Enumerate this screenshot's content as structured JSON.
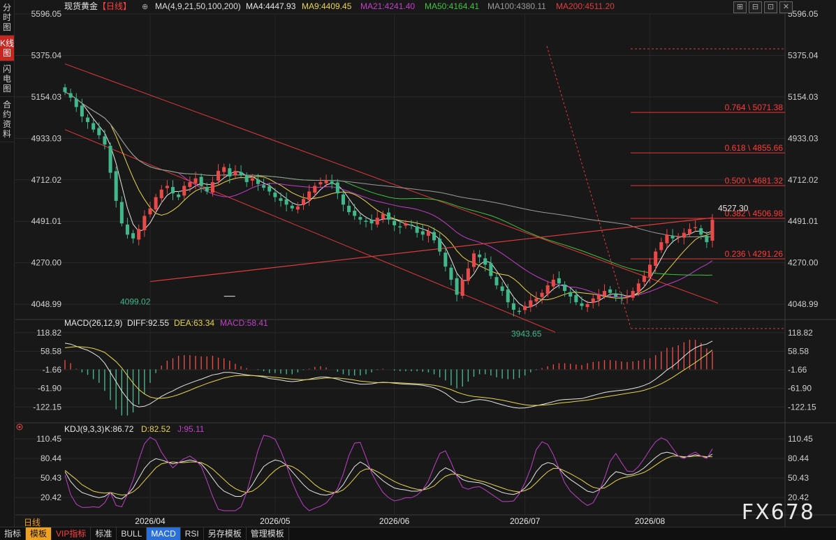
{
  "sidebar": {
    "tabs": [
      "分时图",
      "K线图",
      "闪电图",
      "合约资料"
    ],
    "active": 1
  },
  "header": {
    "name": "现货黄金",
    "period": "【日线】",
    "ma_params": "MA(4,9,21,50,100,200)",
    "ma_items": [
      {
        "label": "MA4:4447.93",
        "color": "#e6e6e6"
      },
      {
        "label": "MA9:4409.45",
        "color": "#e8d44d"
      },
      {
        "label": "MA21:4241.40",
        "color": "#c040c8"
      },
      {
        "label": "MA50:4164.41",
        "color": "#3ec43e"
      },
      {
        "label": "MA100:4380.11",
        "color": "#9a9a9a"
      },
      {
        "label": "MA200:4511.20",
        "color": "#e03c3c"
      }
    ]
  },
  "window_icons": [
    "⊞",
    "⊟",
    "⊡",
    "✕"
  ],
  "macd_header": {
    "label": "MACD(26,12,9)",
    "diff": "DIFF:92.55",
    "dea": "DEA:63.34",
    "macd": "MACD:58.41"
  },
  "kdj_header": {
    "label": "KDJ(9,3,3)",
    "k": "K:86.72",
    "d": "D:82.52",
    "j": "J:95.11"
  },
  "bottom_tabs": [
    "指标",
    "模板",
    "VIP指标",
    "标准",
    "BULL",
    "MACD",
    "RSI",
    "另存模板",
    "管理模板"
  ],
  "period_label": "日线",
  "watermark": "FX678",
  "colors": {
    "up": "#e84a4a",
    "down": "#3fb88a",
    "background": "#181818",
    "grid": "#2c2c2c"
  },
  "chart_data": {
    "type": "candlestick",
    "x_ticks": [
      "2026/04",
      "2026/05",
      "2026/06",
      "2026/07",
      "2026/08"
    ],
    "y_ticks": [
      "5596.05",
      "5375.04",
      "5154.03",
      "4933.03",
      "4712.02",
      "4491.01",
      "4270.00",
      "4048.99"
    ],
    "ylim": [
      3990,
      5596.05
    ],
    "annotations": {
      "high": "4527.30",
      "low_a": "4099.02",
      "low_b": "3943.65"
    },
    "fib_levels": [
      {
        "label": "0.764 \\ 5071.38",
        "value": 5071.38
      },
      {
        "label": "0.618 \\ 4855.66",
        "value": 4855.66
      },
      {
        "label": "0.500 \\ 4681.32",
        "value": 4681.32
      },
      {
        "label": "0.382 \\ 4506.98",
        "value": 4506.98
      },
      {
        "label": "0.236 \\ 4291.26",
        "value": 4291.26
      }
    ],
    "fib_top": 5410,
    "fib_bottom": 3920,
    "closes": [
      5180,
      5150,
      5100,
      5050,
      5020,
      4980,
      4950,
      4900,
      4750,
      4600,
      4480,
      4420,
      4400,
      4450,
      4520,
      4560,
      4620,
      4660,
      4680,
      4640,
      4620,
      4680,
      4700,
      4720,
      4680,
      4650,
      4700,
      4760,
      4780,
      4730,
      4760,
      4740,
      4700,
      4720,
      4690,
      4670,
      4650,
      4620,
      4600,
      4580,
      4560,
      4570,
      4610,
      4650,
      4680,
      4700,
      4710,
      4690,
      4640,
      4580,
      4540,
      4520,
      4500,
      4490,
      4480,
      4510,
      4530,
      4500,
      4470,
      4460,
      4480,
      4470,
      4430,
      4420,
      4440,
      4390,
      4330,
      4250,
      4180,
      4100,
      4180,
      4240,
      4320,
      4300,
      4260,
      4200,
      4150,
      4120,
      4060,
      4020,
      4010,
      4040,
      4070,
      4080,
      4110,
      4150,
      4180,
      4160,
      4120,
      4090,
      4060,
      4040,
      4050,
      4080,
      4100,
      4120,
      4110,
      4090,
      4080,
      4090,
      4120,
      4160,
      4200,
      4260,
      4330,
      4380,
      4420,
      4400,
      4410,
      4430,
      4450,
      4460,
      4420,
      4380,
      4500
    ],
    "macd": {
      "ylim": [
        -160,
        130
      ],
      "y_ticks": [
        "118.82",
        "58.58",
        "-1.66",
        "-61.90",
        "-122.15"
      ],
      "diff": [
        85,
        82,
        75,
        68,
        62,
        52,
        40,
        20,
        -10,
        -40,
        -70,
        -95,
        -115,
        -122,
        -120,
        -112,
        -100,
        -88,
        -78,
        -70,
        -60,
        -52,
        -45,
        -38,
        -32,
        -25,
        -18,
        -15,
        -10,
        -10,
        -12,
        -15,
        -18,
        -20,
        -22,
        -25,
        -30,
        -32,
        -35,
        -38,
        -40,
        -38,
        -35,
        -32,
        -28,
        -25,
        -25,
        -28,
        -32,
        -38,
        -42,
        -45,
        -48,
        -48,
        -47,
        -44,
        -42,
        -43,
        -45,
        -47,
        -48,
        -49,
        -50,
        -52,
        -55,
        -60,
        -68,
        -78,
        -92,
        -105,
        -108,
        -105,
        -100,
        -98,
        -100,
        -104,
        -110,
        -115,
        -120,
        -124,
        -126,
        -125,
        -122,
        -118,
        -114,
        -110,
        -105,
        -100,
        -98,
        -97,
        -96,
        -95,
        -90,
        -85,
        -80,
        -75,
        -72,
        -70,
        -68,
        -66,
        -62,
        -58,
        -52,
        -44,
        -32,
        -18,
        -2,
        10,
        25,
        42,
        58,
        70,
        78,
        82,
        92
      ],
      "dea": [
        70,
        72,
        74,
        73,
        71,
        68,
        62,
        55,
        40,
        25,
        5,
        -20,
        -45,
        -65,
        -80,
        -90,
        -94,
        -94,
        -92,
        -88,
        -82,
        -75,
        -68,
        -60,
        -53,
        -46,
        -40,
        -34,
        -28,
        -24,
        -21,
        -20,
        -20,
        -20,
        -21,
        -22,
        -24,
        -26,
        -28,
        -30,
        -32,
        -33,
        -34,
        -33,
        -32,
        -30,
        -28,
        -28,
        -28,
        -30,
        -32,
        -35,
        -38,
        -40,
        -42,
        -43,
        -43,
        -43,
        -43,
        -44,
        -45,
        -46,
        -47,
        -48,
        -50,
        -52,
        -55,
        -60,
        -66,
        -74,
        -80,
        -85,
        -88,
        -90,
        -92,
        -94,
        -97,
        -100,
        -104,
        -108,
        -112,
        -115,
        -117,
        -117,
        -116,
        -115,
        -113,
        -110,
        -108,
        -106,
        -104,
        -102,
        -100,
        -97,
        -93,
        -90,
        -87,
        -84,
        -81,
        -78,
        -75,
        -72,
        -68,
        -62,
        -55,
        -47,
        -37,
        -26,
        -14,
        -2,
        10,
        22,
        35,
        48,
        63
      ]
    },
    "kdj": {
      "ylim": [
        0,
        118
      ],
      "y_ticks": [
        "110.45",
        "80.44",
        "50.43",
        "20.42"
      ],
      "k": [
        60,
        45,
        35,
        28,
        25,
        22,
        20,
        22,
        28,
        20,
        18,
        25,
        35,
        50,
        65,
        75,
        80,
        78,
        75,
        72,
        74,
        76,
        78,
        76,
        72,
        62,
        50,
        38,
        30,
        26,
        22,
        22,
        28,
        40,
        55,
        68,
        74,
        78,
        76,
        70,
        60,
        50,
        40,
        32,
        28,
        25,
        24,
        26,
        30,
        40,
        55,
        68,
        75,
        70,
        62,
        54,
        46,
        40,
        35,
        33,
        32,
        30,
        30,
        32,
        38,
        48,
        60,
        66,
        62,
        55,
        48,
        45,
        44,
        43,
        40,
        36,
        32,
        28,
        26,
        25,
        28,
        35,
        45,
        60,
        70,
        74,
        72,
        65,
        55,
        48,
        42,
        36,
        30,
        28,
        32,
        40,
        52,
        60,
        58,
        55,
        56,
        60,
        66,
        74,
        82,
        88,
        90,
        88,
        84,
        82,
        84,
        86,
        84,
        82,
        87
      ],
      "d": [
        62,
        55,
        48,
        40,
        35,
        30,
        28,
        27,
        28,
        26,
        24,
        25,
        29,
        36,
        46,
        56,
        66,
        72,
        74,
        75,
        74,
        74,
        75,
        75,
        74,
        70,
        64,
        56,
        48,
        40,
        34,
        30,
        28,
        30,
        36,
        44,
        54,
        62,
        68,
        70,
        68,
        63,
        56,
        48,
        40,
        34,
        30,
        28,
        28,
        32,
        40,
        50,
        60,
        64,
        64,
        60,
        55,
        50,
        45,
        41,
        38,
        35,
        33,
        32,
        34,
        38,
        46,
        53,
        56,
        56,
        54,
        51,
        48,
        46,
        44,
        41,
        38,
        35,
        32,
        30,
        29,
        31,
        35,
        43,
        52,
        60,
        65,
        65,
        61,
        57,
        52,
        47,
        41,
        36,
        34,
        35,
        40,
        46,
        50,
        52,
        54,
        56,
        59,
        64,
        70,
        76,
        81,
        84,
        84,
        83,
        83,
        84,
        84,
        83,
        83
      ],
      "j": [
        55,
        25,
        10,
        5,
        5,
        6,
        5,
        12,
        28,
        8,
        6,
        25,
        47,
        78,
        103,
        113,
        108,
        90,
        77,
        66,
        74,
        80,
        84,
        78,
        68,
        46,
        22,
        2,
        -6,
        -2,
        -2,
        6,
        28,
        60,
        93,
        116,
        114,
        110,
        92,
        70,
        44,
        24,
        8,
        0,
        4,
        7,
        12,
        22,
        34,
        56,
        85,
        104,
        105,
        82,
        58,
        42,
        28,
        20,
        15,
        17,
        20,
        20,
        24,
        32,
        46,
        68,
        88,
        92,
        74,
        53,
        36,
        33,
        36,
        37,
        32,
        26,
        20,
        14,
        14,
        15,
        26,
        43,
        65,
        94,
        106,
        102,
        86,
        65,
        43,
        30,
        22,
        14,
        8,
        12,
        28,
        50,
        76,
        88,
        74,
        61,
        60,
        68,
        80,
        94,
        106,
        112,
        108,
        96,
        84,
        80,
        86,
        90,
        84,
        80,
        95
      ]
    }
  }
}
